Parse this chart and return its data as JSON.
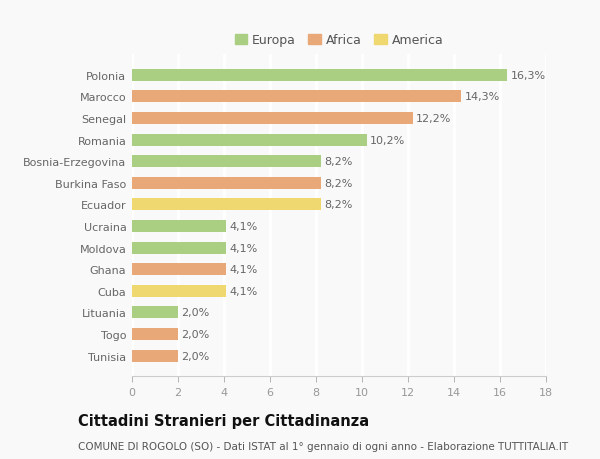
{
  "countries": [
    "Polonia",
    "Marocco",
    "Senegal",
    "Romania",
    "Bosnia-Erzegovina",
    "Burkina Faso",
    "Ecuador",
    "Ucraina",
    "Moldova",
    "Ghana",
    "Cuba",
    "Lituania",
    "Togo",
    "Tunisia"
  ],
  "values": [
    16.3,
    14.3,
    12.2,
    10.2,
    8.2,
    8.2,
    8.2,
    4.1,
    4.1,
    4.1,
    4.1,
    2.0,
    2.0,
    2.0
  ],
  "labels": [
    "16,3%",
    "14,3%",
    "12,2%",
    "10,2%",
    "8,2%",
    "8,2%",
    "8,2%",
    "4,1%",
    "4,1%",
    "4,1%",
    "4,1%",
    "2,0%",
    "2,0%",
    "2,0%"
  ],
  "categories": [
    "Europa",
    "Africa",
    "America"
  ],
  "bar_colors": [
    "#aacf82",
    "#e8a878",
    "#e8a878",
    "#aacf82",
    "#aacf82",
    "#e8a878",
    "#f0d870",
    "#aacf82",
    "#aacf82",
    "#e8a878",
    "#f0d870",
    "#aacf82",
    "#e8a878",
    "#e8a878"
  ],
  "legend_colors": [
    "#aacf82",
    "#e8a878",
    "#f0d870"
  ],
  "title": "Cittadini Stranieri per Cittadinanza",
  "subtitle": "COMUNE DI ROGOLO (SO) - Dati ISTAT al 1° gennaio di ogni anno - Elaborazione TUTTITALIA.IT",
  "xlim": [
    0,
    18
  ],
  "xticks": [
    0,
    2,
    4,
    6,
    8,
    10,
    12,
    14,
    16,
    18
  ],
  "background_color": "#f9f9f9",
  "grid_color": "#ffffff",
  "bar_height": 0.55,
  "label_fontsize": 8,
  "title_fontsize": 10.5,
  "subtitle_fontsize": 7.5,
  "legend_fontsize": 9,
  "ytick_fontsize": 8
}
